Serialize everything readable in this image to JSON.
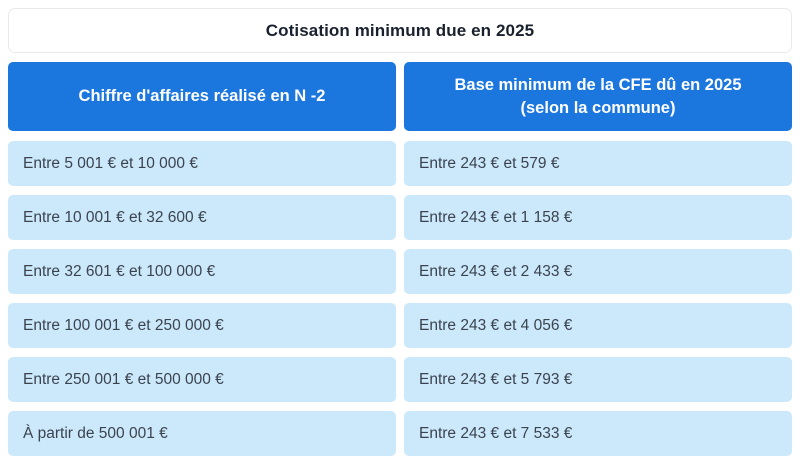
{
  "colors": {
    "header_blue": "#1b76de",
    "row_light_blue": "#cbe9fa",
    "title_text": "#1a212e",
    "cell_text": "#3b4350",
    "title_border": "#e8eaee"
  },
  "table": {
    "title": "Cotisation minimum due en 2025",
    "columns": [
      "Chiffre d'affaires réalisé en N -2",
      "Base minimum de la CFE dû en 2025 (selon la commune)"
    ],
    "rows": [
      [
        "Entre 5 001 € et 10 000 €",
        "Entre 243 € et 579 €"
      ],
      [
        "Entre 10 001 € et 32 600 €",
        "Entre 243 € et 1 158 €"
      ],
      [
        "Entre 32 601 € et 100 000 €",
        "Entre 243 € et 2 433 €"
      ],
      [
        "Entre 100 001 € et 250 000 €",
        "Entre 243 € et 4 056 €"
      ],
      [
        "Entre 250 001 € et 500 000 €",
        "Entre 243 € et 5 793 €"
      ],
      [
        "À partir de 500 001 €",
        "Entre 243 € et 7 533 €"
      ]
    ]
  },
  "chart_data": {
    "type": "table",
    "title": "Cotisation minimum due en 2025",
    "columns": [
      "Chiffre d'affaires réalisé en N -2",
      "Base minimum de la CFE dû en 2025 (selon la commune)"
    ],
    "rows": [
      [
        "Entre 5 001 € et 10 000 €",
        "Entre 243 € et 579 €"
      ],
      [
        "Entre 10 001 € et 32 600 €",
        "Entre 243 € et 1 158 €"
      ],
      [
        "Entre 32 601 € et 100 000 €",
        "Entre 243 € et 2 433 €"
      ],
      [
        "Entre 100 001 € et 250 000 €",
        "Entre 243 € et 4 056 €"
      ],
      [
        "Entre 250 001 € et 500 000 €",
        "Entre 243 € et 5 793 €"
      ],
      [
        "À partir de 500 001 €",
        "Entre 243 € et 7 533 €"
      ]
    ],
    "layout": {
      "header_style": "blue-filled-white-bold-centered",
      "body_style": "light-blue-cards-left-aligned",
      "column_count": 2,
      "row_count": 6
    }
  }
}
